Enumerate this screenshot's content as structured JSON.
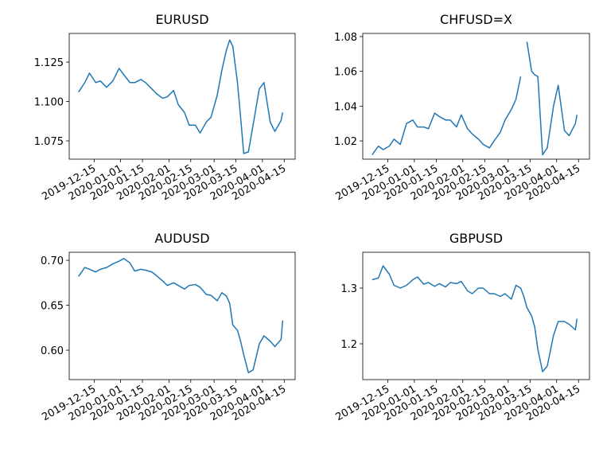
{
  "chart_data": [
    {
      "type": "line",
      "title": "EURUSD",
      "x": [
        "2019-12-05",
        "2019-12-09",
        "2019-12-12",
        "2019-12-16",
        "2019-12-19",
        "2019-12-23",
        "2019-12-27",
        "2019-12-31",
        "2020-01-03",
        "2020-01-07",
        "2020-01-10",
        "2020-01-14",
        "2020-01-17",
        "2020-01-21",
        "2020-01-24",
        "2020-01-28",
        "2020-01-31",
        "2020-02-04",
        "2020-02-07",
        "2020-02-11",
        "2020-02-14",
        "2020-02-18",
        "2020-02-21",
        "2020-02-25",
        "2020-02-28",
        "2020-03-03",
        "2020-03-06",
        "2020-03-09",
        "2020-03-11",
        "2020-03-13",
        "2020-03-16",
        "2020-03-18",
        "2020-03-20",
        "2020-03-23",
        "2020-03-26",
        "2020-03-30",
        "2020-04-02",
        "2020-04-06",
        "2020-04-09",
        "2020-04-13",
        "2020-04-14"
      ],
      "series": [
        {
          "name": "EURUSD",
          "color": "#1f77b4",
          "values": [
            1.106,
            1.112,
            1.118,
            1.112,
            1.113,
            1.109,
            1.113,
            1.121,
            1.117,
            1.112,
            1.112,
            1.114,
            1.112,
            1.108,
            1.105,
            1.102,
            1.103,
            1.107,
            1.098,
            1.093,
            1.085,
            1.085,
            1.08,
            1.087,
            1.09,
            1.104,
            1.12,
            1.133,
            1.139,
            1.135,
            1.112,
            1.09,
            1.067,
            1.068,
            1.085,
            1.108,
            1.112,
            1.087,
            1.081,
            1.088,
            1.093
          ]
        }
      ],
      "xlim": [
        "2019-11-29",
        "2020-04-22"
      ],
      "xticks": [
        "2019-12-15",
        "2020-01-01",
        "2020-01-15",
        "2020-02-01",
        "2020-02-15",
        "2020-03-01",
        "2020-03-15",
        "2020-04-01",
        "2020-04-15"
      ],
      "ylim": [
        1.0634,
        1.1432
      ],
      "yticks": [
        1.075,
        {
          "value": 1.1,
          "label": "1.100"
        },
        1.125
      ]
    },
    {
      "type": "line",
      "title": "CHFUSD=X",
      "x": [
        "2019-12-05",
        "2019-12-09",
        "2019-12-12",
        "2019-12-16",
        "2019-12-19",
        "2019-12-23",
        "2019-12-27",
        "2019-12-31",
        "2020-01-03",
        "2020-01-07",
        "2020-01-10",
        "2020-01-14",
        "2020-01-17",
        "2020-01-21",
        "2020-01-24",
        "2020-01-28",
        "2020-01-31",
        "2020-02-04",
        "2020-02-07",
        "2020-02-11",
        "2020-02-14",
        "2020-02-18",
        "2020-02-21",
        "2020-02-25",
        "2020-02-28",
        "2020-03-03",
        "2020-03-06",
        "2020-03-09",
        "2020-03-11",
        "2020-03-13",
        "2020-03-16",
        "2020-03-18",
        "2020-03-20",
        "2020-03-23",
        "2020-03-26",
        "2020-03-30",
        "2020-04-02",
        "2020-04-06",
        "2020-04-09",
        "2020-04-13",
        "2020-04-14"
      ],
      "series": [
        {
          "name": "CHFUSD=X",
          "color": "#1f77b4",
          "values": [
            1.012,
            1.017,
            1.015,
            1.017,
            1.021,
            1.018,
            1.03,
            1.032,
            1.028,
            1.028,
            1.027,
            1.036,
            1.034,
            1.032,
            1.032,
            1.028,
            1.035,
            1.027,
            1.024,
            1.021,
            1.018,
            1.016,
            1.02,
            1.025,
            1.032,
            1.038,
            1.044,
            1.057,
            null,
            1.077,
            1.06,
            1.058,
            1.057,
            1.012,
            1.016,
            1.04,
            1.052,
            1.026,
            1.023,
            1.03,
            1.035
          ]
        }
      ],
      "xlim": [
        "2019-11-29",
        "2020-04-22"
      ],
      "xticks": [
        "2019-12-15",
        "2020-01-01",
        "2020-01-15",
        "2020-02-01",
        "2020-02-15",
        "2020-03-01",
        "2020-03-15",
        "2020-04-01",
        "2020-04-15"
      ],
      "ylim": [
        1.0095,
        1.0818
      ],
      "yticks": [
        1.02,
        1.04,
        1.06,
        1.08
      ]
    },
    {
      "type": "line",
      "title": "AUDUSD",
      "x": [
        "2019-12-05",
        "2019-12-09",
        "2019-12-12",
        "2019-12-16",
        "2019-12-19",
        "2019-12-23",
        "2019-12-27",
        "2019-12-31",
        "2020-01-03",
        "2020-01-07",
        "2020-01-10",
        "2020-01-14",
        "2020-01-17",
        "2020-01-21",
        "2020-01-24",
        "2020-01-28",
        "2020-01-31",
        "2020-02-04",
        "2020-02-07",
        "2020-02-11",
        "2020-02-14",
        "2020-02-18",
        "2020-02-21",
        "2020-02-25",
        "2020-02-28",
        "2020-03-03",
        "2020-03-06",
        "2020-03-09",
        "2020-03-11",
        "2020-03-13",
        "2020-03-16",
        "2020-03-18",
        "2020-03-20",
        "2020-03-23",
        "2020-03-26",
        "2020-03-30",
        "2020-04-02",
        "2020-04-06",
        "2020-04-09",
        "2020-04-13",
        "2020-04-14"
      ],
      "series": [
        {
          "name": "AUDUSD",
          "color": "#1f77b4",
          "values": [
            0.682,
            0.692,
            0.69,
            0.687,
            0.69,
            0.692,
            0.696,
            0.699,
            0.702,
            0.697,
            0.688,
            0.69,
            0.689,
            0.687,
            0.683,
            0.677,
            0.672,
            0.675,
            0.672,
            0.668,
            0.672,
            0.673,
            0.67,
            0.662,
            0.661,
            0.655,
            0.664,
            0.66,
            0.652,
            0.628,
            0.622,
            0.61,
            0.595,
            0.575,
            0.578,
            0.607,
            0.616,
            0.61,
            0.604,
            0.612,
            0.633
          ]
        }
      ],
      "xlim": [
        "2019-11-29",
        "2020-04-22"
      ],
      "xticks": [
        "2019-12-15",
        "2020-01-01",
        "2020-01-15",
        "2020-02-01",
        "2020-02-15",
        "2020-03-01",
        "2020-03-15",
        "2020-04-01",
        "2020-04-15"
      ],
      "ylim": [
        0.5673,
        0.7089
      ],
      "yticks": [
        {
          "value": 0.6,
          "label": "0.60"
        },
        0.65,
        {
          "value": 0.7,
          "label": "0.70"
        }
      ]
    },
    {
      "type": "line",
      "title": "GBPUSD",
      "x": [
        "2019-12-05",
        "2019-12-09",
        "2019-12-12",
        "2019-12-16",
        "2019-12-19",
        "2019-12-23",
        "2019-12-27",
        "2019-12-31",
        "2020-01-03",
        "2020-01-07",
        "2020-01-10",
        "2020-01-14",
        "2020-01-17",
        "2020-01-21",
        "2020-01-24",
        "2020-01-28",
        "2020-01-31",
        "2020-02-04",
        "2020-02-07",
        "2020-02-11",
        "2020-02-14",
        "2020-02-18",
        "2020-02-21",
        "2020-02-25",
        "2020-02-28",
        "2020-03-03",
        "2020-03-06",
        "2020-03-09",
        "2020-03-11",
        "2020-03-13",
        "2020-03-16",
        "2020-03-18",
        "2020-03-20",
        "2020-03-23",
        "2020-03-26",
        "2020-03-30",
        "2020-04-02",
        "2020-04-06",
        "2020-04-09",
        "2020-04-13",
        "2020-04-14"
      ],
      "series": [
        {
          "name": "GBPUSD",
          "color": "#1f77b4",
          "values": [
            1.315,
            1.318,
            1.34,
            1.325,
            1.305,
            1.3,
            1.305,
            1.315,
            1.32,
            1.307,
            1.31,
            1.303,
            1.308,
            1.302,
            1.31,
            1.308,
            1.312,
            1.295,
            1.29,
            1.3,
            1.3,
            1.29,
            1.29,
            1.285,
            1.29,
            1.28,
            1.305,
            1.3,
            1.285,
            1.265,
            1.25,
            1.23,
            1.19,
            1.15,
            1.16,
            1.215,
            1.24,
            1.24,
            1.235,
            1.225,
            1.245
          ]
        }
      ],
      "xlim": [
        "2019-11-29",
        "2020-04-22"
      ],
      "xticks": [
        "2019-12-15",
        "2020-01-01",
        "2020-01-15",
        "2020-02-01",
        "2020-02-15",
        "2020-03-01",
        "2020-03-15",
        "2020-04-01",
        "2020-04-15"
      ],
      "ylim": [
        1.1357,
        1.3643
      ],
      "yticks": [
        1.2,
        1.3
      ]
    }
  ]
}
